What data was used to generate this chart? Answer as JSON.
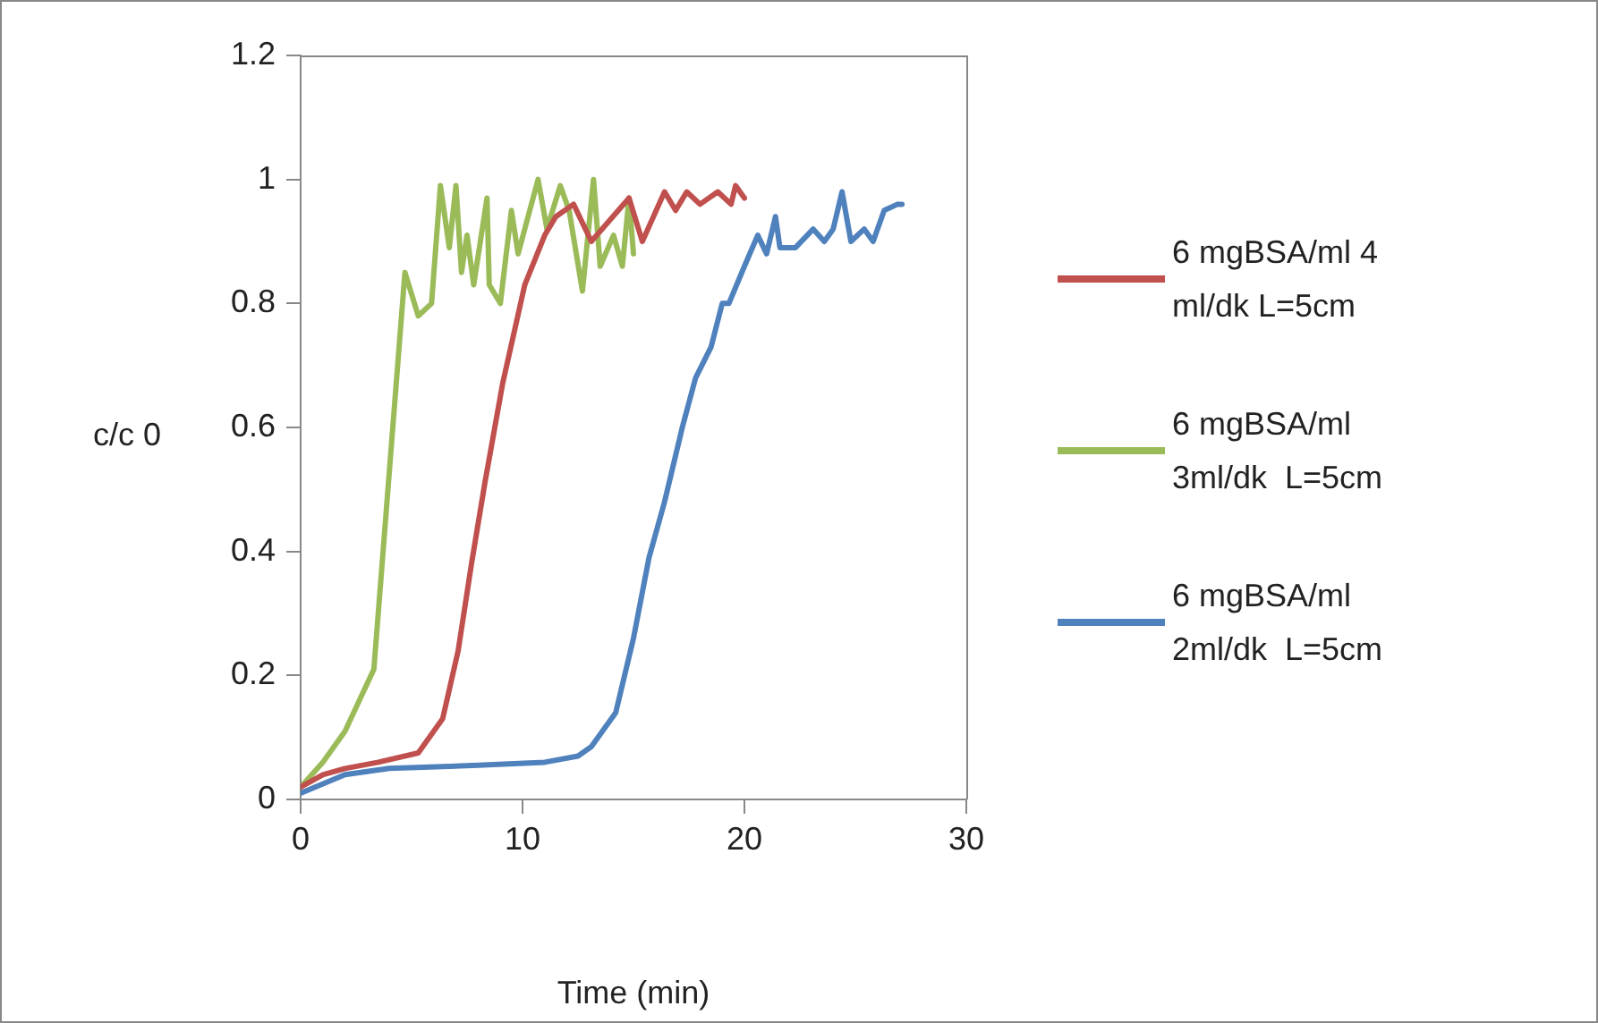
{
  "chart_data": {
    "type": "line",
    "xlabel": "Time (min)",
    "ylabel": "c/c 0",
    "xlim": [
      0,
      30
    ],
    "xticks": [
      0,
      10,
      20,
      30
    ],
    "ylim": [
      0,
      1.2
    ],
    "yticks": [
      0,
      0.2,
      0.4,
      0.6,
      0.8,
      1,
      1.2
    ],
    "grid": false,
    "legend": "right",
    "marker": "none",
    "line_style": "solid",
    "series": [
      {
        "name": "6 mgBSA/ml 4 ml/dk L=5cm",
        "color": "#c0504d",
        "x": [
          0,
          1,
          2,
          3.5,
          5.3,
          6.4,
          7.1,
          7.7,
          8.3,
          9.1,
          10.1,
          11,
          11.5,
          12.3,
          13.1,
          14.8,
          15.4,
          16.4,
          16.9,
          17.4,
          18,
          18.8,
          19.4,
          19.6,
          20
        ],
        "values": [
          0.02,
          0.04,
          0.05,
          0.06,
          0.075,
          0.13,
          0.24,
          0.38,
          0.51,
          0.67,
          0.83,
          0.91,
          0.94,
          0.96,
          0.9,
          0.97,
          0.9,
          0.98,
          0.95,
          0.98,
          0.96,
          0.98,
          0.96,
          0.99,
          0.97
        ]
      },
      {
        "name": "6 mgBSA/ml 3ml/dk  L=5cm",
        "color": "#9bbb59",
        "x": [
          0,
          1,
          2,
          3.3,
          4.7,
          5.3,
          5.9,
          6.3,
          6.7,
          7,
          7.25,
          7.5,
          7.8,
          8.4,
          8.5,
          9,
          9.5,
          9.8,
          10.7,
          11.1,
          11.7,
          12.1,
          12.7,
          13.2,
          13.5,
          14.1,
          14.5,
          14.8,
          15
        ],
        "values": [
          0.02,
          0.06,
          0.11,
          0.21,
          0.85,
          0.78,
          0.8,
          0.99,
          0.89,
          0.99,
          0.85,
          0.91,
          0.83,
          0.97,
          0.83,
          0.8,
          0.95,
          0.88,
          1,
          0.92,
          0.99,
          0.95,
          0.82,
          1,
          0.86,
          0.91,
          0.86,
          0.97,
          0.88
        ]
      },
      {
        "name": "6 mgBSA/ml 2ml/dk  L=5cm",
        "color": "#4f81bd",
        "x": [
          0,
          2,
          4,
          8,
          11,
          12.5,
          13.1,
          14.2,
          15,
          15.7,
          16.4,
          17.2,
          17.8,
          18.5,
          19,
          19.3,
          20,
          20.6,
          21,
          21.4,
          21.6,
          22.3,
          23.1,
          23.6,
          24,
          24.4,
          24.8,
          25.4,
          25.8,
          26.3,
          26.9,
          27.1
        ],
        "values": [
          0.01,
          0.04,
          0.05,
          0.055,
          0.06,
          0.07,
          0.085,
          0.14,
          0.26,
          0.39,
          0.48,
          0.6,
          0.68,
          0.73,
          0.8,
          0.8,
          0.86,
          0.91,
          0.88,
          0.94,
          0.89,
          0.89,
          0.92,
          0.9,
          0.92,
          0.98,
          0.9,
          0.92,
          0.9,
          0.95,
          0.96,
          0.96
        ]
      }
    ]
  }
}
